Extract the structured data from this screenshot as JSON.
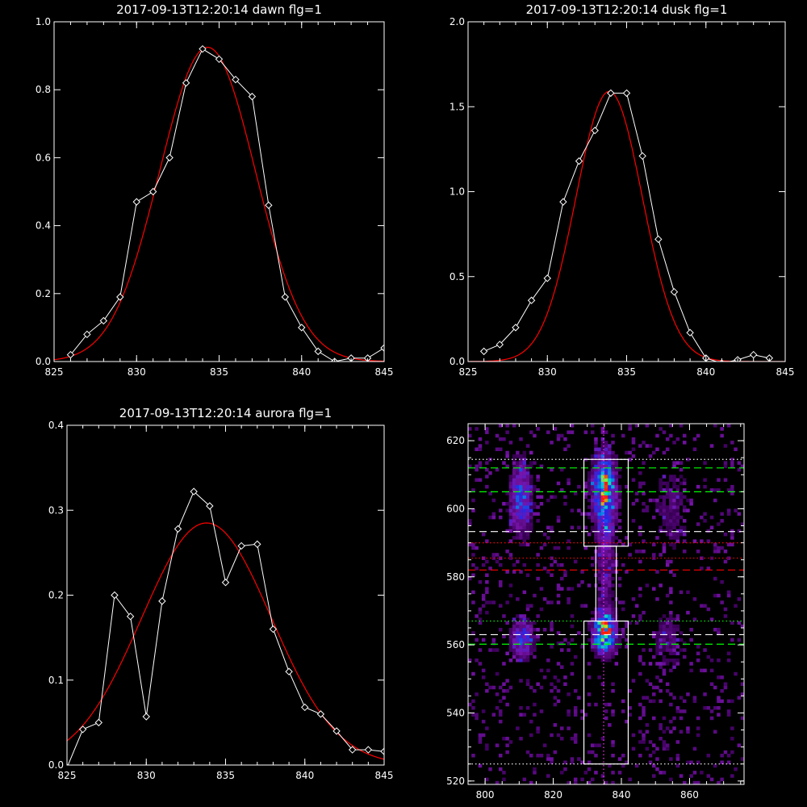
{
  "chart_data": [
    {
      "id": "dawn",
      "type": "line",
      "title": "2017-09-13T12:20:14 dawn flg=1",
      "xlim": [
        825,
        845
      ],
      "ylim": [
        0,
        1.0
      ],
      "xticks": [
        825,
        830,
        835,
        840,
        845
      ],
      "xtick_labels": [
        "825",
        "830",
        "835",
        "840",
        "845"
      ],
      "yticks": [
        0,
        0.2,
        0.4,
        0.6,
        0.8,
        1.0
      ],
      "ytick_labels": [
        "0.0",
        "0.2",
        "0.4",
        "0.6",
        "0.8",
        "1.0"
      ],
      "colors": {
        "data": "#ffffff",
        "fit": "#ff0000"
      },
      "series": [
        {
          "x": [
            826,
            827,
            828,
            829,
            830,
            831,
            832,
            833,
            834,
            835,
            836,
            837,
            838,
            839,
            840,
            841,
            842,
            843,
            844,
            845
          ],
          "y": [
            0.02,
            0.08,
            0.12,
            0.19,
            0.47,
            0.5,
            0.6,
            0.82,
            0.92,
            0.89,
            0.83,
            0.78,
            0.46,
            0.19,
            0.1,
            0.03,
            0.0,
            0.01,
            0.01,
            0.04
          ],
          "markers": "diamond"
        }
      ],
      "fit": {
        "type": "gaussian",
        "amplitude": 0.925,
        "center": 834.3,
        "sigma": 2.9
      }
    },
    {
      "id": "dusk",
      "type": "line",
      "title": "2017-09-13T12:20:14 dusk flg=1",
      "xlim": [
        825,
        845
      ],
      "ylim": [
        0,
        2.0
      ],
      "xticks": [
        825,
        830,
        835,
        840,
        845
      ],
      "xtick_labels": [
        "825",
        "830",
        "835",
        "840",
        "845"
      ],
      "yticks": [
        0,
        0.5,
        1.0,
        1.5,
        2.0
      ],
      "ytick_labels": [
        "0.0",
        "0.5",
        "1.0",
        "1.5",
        "2.0"
      ],
      "colors": {
        "data": "#ffffff",
        "fit": "#ff0000"
      },
      "series": [
        {
          "x": [
            826,
            827,
            828,
            829,
            830,
            831,
            832,
            833,
            834,
            835,
            836,
            837,
            838,
            839,
            840,
            841,
            842,
            843,
            844
          ],
          "y": [
            0.06,
            0.1,
            0.2,
            0.36,
            0.49,
            0.94,
            1.18,
            1.36,
            1.58,
            1.58,
            1.21,
            0.72,
            0.41,
            0.17,
            0.02,
            -0.01,
            0.01,
            0.04,
            0.02
          ],
          "markers": "diamond"
        }
      ],
      "fit": {
        "type": "gaussian",
        "amplitude": 1.59,
        "center": 833.9,
        "sigma": 2.1
      }
    },
    {
      "id": "aurora",
      "type": "line",
      "title": "2017-09-13T12:20:14 aurora flg=1",
      "xlim": [
        825,
        845
      ],
      "ylim": [
        0,
        0.4
      ],
      "xticks": [
        825,
        830,
        835,
        840,
        845
      ],
      "xtick_labels": [
        "825",
        "830",
        "835",
        "840",
        "845"
      ],
      "yticks": [
        0,
        0.1,
        0.2,
        0.3,
        0.4
      ],
      "ytick_labels": [
        "0.0",
        "0.1",
        "0.2",
        "0.3",
        "0.4"
      ],
      "colors": {
        "data": "#ffffff",
        "fit": "#ff0000"
      },
      "series": [
        {
          "x": [
            825,
            826,
            827,
            828,
            829,
            830,
            831,
            832,
            833,
            834,
            835,
            836,
            837,
            838,
            839,
            840,
            841,
            842,
            843,
            844,
            845
          ],
          "y": [
            -0.003,
            0.042,
            0.05,
            0.2,
            0.175,
            0.057,
            0.193,
            0.278,
            0.322,
            0.305,
            0.215,
            0.258,
            0.26,
            0.16,
            0.11,
            0.068,
            0.06,
            0.04,
            0.018,
            0.018,
            0.016
          ],
          "markers": "diamond"
        }
      ],
      "fit": {
        "type": "gaussian",
        "amplitude": 0.285,
        "center": 833.8,
        "sigma": 4.1
      }
    },
    {
      "id": "image",
      "type": "heatmap",
      "xlim": [
        795,
        876
      ],
      "ylim": [
        519,
        625
      ],
      "xticks": [
        800,
        820,
        840,
        860
      ],
      "xtick_labels": [
        "800",
        "820",
        "840",
        "860"
      ],
      "yticks": [
        520,
        540,
        560,
        580,
        600,
        620
      ],
      "ytick_labels": [
        "520",
        "540",
        "560",
        "580",
        "600",
        "620"
      ],
      "colors": {
        "box": "#ffffff",
        "green": "#00ff00",
        "red": "#ff0000",
        "magenta": "#ff33ff",
        "white": "#ffffff"
      },
      "blobs": [
        {
          "x": 835,
          "y": 605,
          "amp": 0.85,
          "sx": 2.4,
          "sy": 7.5
        },
        {
          "x": 835,
          "y": 563.5,
          "amp": 1.0,
          "sx": 2.3,
          "sy": 4.0
        },
        {
          "x": 810.5,
          "y": 603,
          "amp": 0.55,
          "sx": 2.2,
          "sy": 7.5
        },
        {
          "x": 811,
          "y": 562,
          "amp": 0.5,
          "sx": 2.4,
          "sy": 4.0
        },
        {
          "x": 835.5,
          "y": 583,
          "amp": 0.28,
          "sx": 2.0,
          "sy": 9.0
        },
        {
          "x": 855,
          "y": 600,
          "amp": 0.18,
          "sx": 4.0,
          "sy": 10.0
        },
        {
          "x": 854,
          "y": 562,
          "amp": 0.2,
          "sx": 3.5,
          "sy": 6.0
        }
      ],
      "boxes": [
        {
          "x0": 829,
          "x1": 842,
          "y0": 589,
          "y1": 614.5
        },
        {
          "x0": 832.5,
          "x1": 838.5,
          "y0": 567,
          "y1": 589
        },
        {
          "x0": 829,
          "x1": 842,
          "y0": 525,
          "y1": 567
        }
      ],
      "hlines": [
        {
          "y": 612,
          "color": "green",
          "style": "dashed"
        },
        {
          "y": 605,
          "color": "green",
          "style": "dashed"
        },
        {
          "y": 593.3,
          "color": "white",
          "style": "dashed"
        },
        {
          "y": 590,
          "color": "red",
          "style": "dotted"
        },
        {
          "y": 585.5,
          "color": "red",
          "style": "dotted"
        },
        {
          "y": 582,
          "color": "red",
          "style": "dashed"
        },
        {
          "y": 567,
          "color": "green",
          "style": "dotted"
        },
        {
          "y": 563,
          "color": "white",
          "style": "dashed"
        },
        {
          "y": 560.2,
          "color": "green",
          "style": "dashed"
        },
        {
          "y": 614.5,
          "color": "white",
          "style": "dotted"
        },
        {
          "y": 525,
          "color": "white",
          "style": "dotted"
        }
      ],
      "vlines": [
        {
          "x": 834.8,
          "color": "magenta",
          "style": "dotted"
        }
      ]
    }
  ]
}
